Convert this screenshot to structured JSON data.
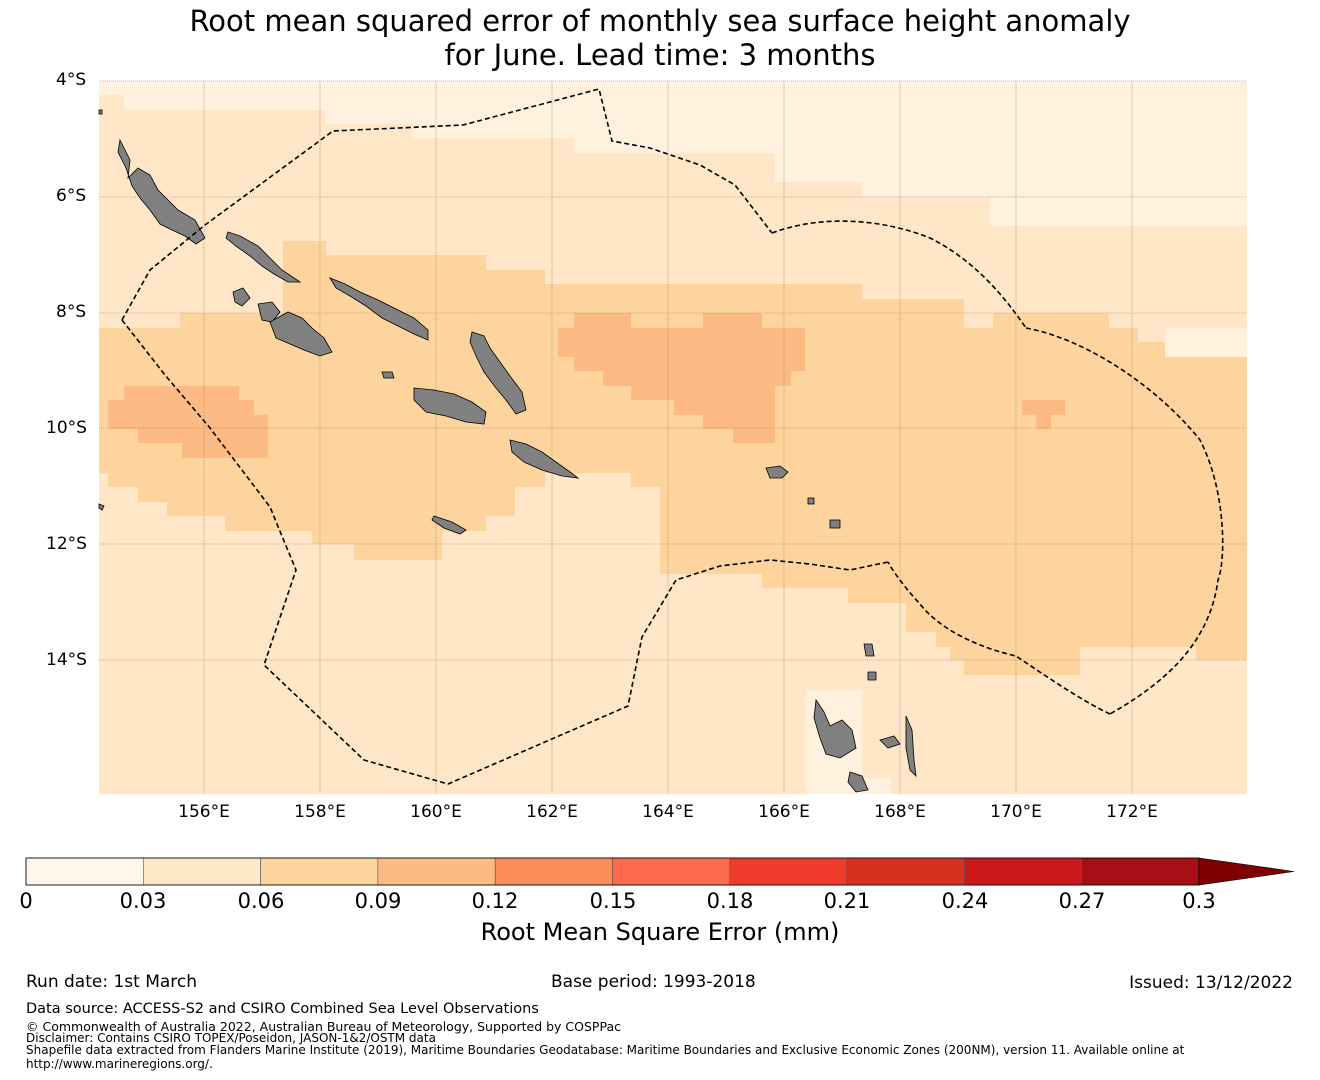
{
  "title": {
    "line1": "Root mean squared error of monthly sea surface height anomaly",
    "line2": "for June. Lead time: 3 months"
  },
  "map": {
    "lat_labels": [
      "4°S",
      "6°S",
      "8°S",
      "10°S",
      "12°S",
      "14°S"
    ],
    "lon_labels": [
      "156°E",
      "158°E",
      "160°E",
      "162°E",
      "164°E",
      "166°E",
      "168°E",
      "170°E",
      "172°E"
    ],
    "colors": {
      "land": "#808080",
      "c0": "#fff1de",
      "c1": "#fee6c6",
      "c2": "#fdd49e",
      "c3": "#fcbb84",
      "boundary": "#000000",
      "grid": "#808080"
    }
  },
  "colorbar": {
    "ticks": [
      "0",
      "0.03",
      "0.06",
      "0.09",
      "0.12",
      "0.15",
      "0.18",
      "0.21",
      "0.24",
      "0.27",
      "0.3"
    ],
    "colors": [
      "#fff7ec",
      "#fee8c8",
      "#fdd49e",
      "#fdbb84",
      "#fc8d59",
      "#fb6a4a",
      "#ef3b2c",
      "#d7301f",
      "#cb181d",
      "#a50f15",
      "#7f0000"
    ],
    "label": "Root Mean Square Error (mm)"
  },
  "footer": {
    "run_date": "Run date: 1st March",
    "base_period": "Base period: 1993-2018",
    "issued": "Issued: 13/12/2022",
    "data_source": "Data source: ACCESS-S2 and CSIRO Combined Sea Level Observations",
    "copyright": "© Commonwealth of Australia 2022, Australian Bureau of Meteorology, Supported by COSPPac",
    "disclaimer": "Disclaimer: Contains CSIRO TOPEX/Poseidon, JASON-1&2/OSTM data",
    "shapefile": "Shapefile data extracted from Flanders Marine Institute (2019), Maritime Boundaries Geodatabase: Maritime Boundaries and Exclusive Economic Zones (200NM), version 11. Available online at",
    "url": "http://www.marineregions.org/."
  }
}
